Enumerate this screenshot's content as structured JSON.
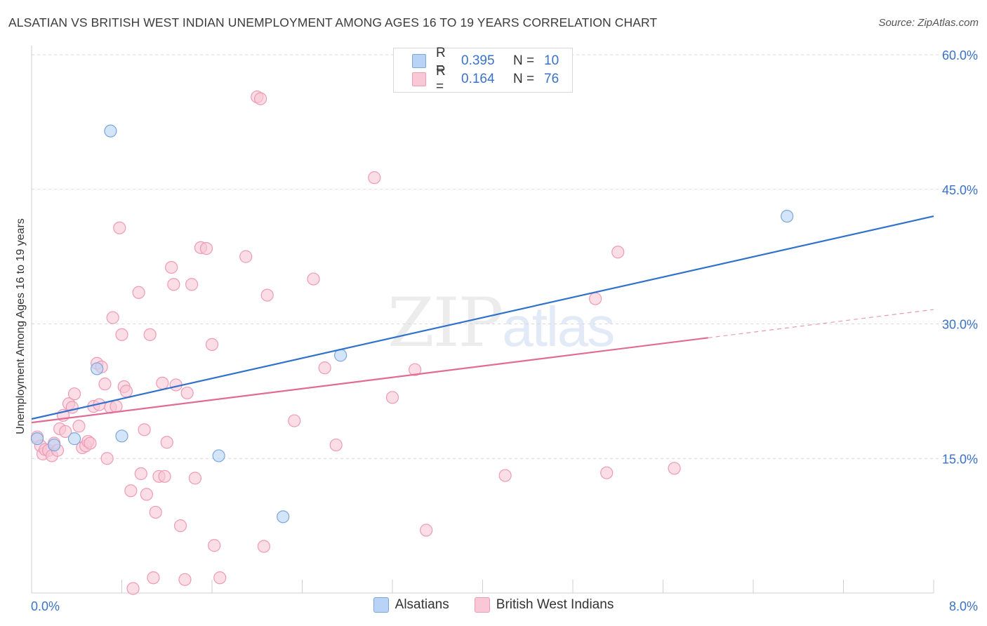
{
  "header": {
    "title": "ALSATIAN VS BRITISH WEST INDIAN UNEMPLOYMENT AMONG AGES 16 TO 19 YEARS CORRELATION CHART",
    "source": "Source: ZipAtlas.com"
  },
  "watermark": {
    "zip": "ZIP",
    "atlas": "atlas"
  },
  "legend": {
    "rows": [
      {
        "r_label": "R =",
        "r_value": "0.395",
        "n_label": "N =",
        "n_value": "10"
      },
      {
        "r_label": "R =",
        "r_value": "0.164",
        "n_label": "N =",
        "n_value": "76"
      }
    ]
  },
  "colors": {
    "alsatians_fill": "#b8d3f5",
    "alsatians_stroke": "#7aa6dc",
    "alsatians_line": "#2f72cc",
    "bwi_fill": "#f9c7d6",
    "bwi_stroke": "#ee9ab4",
    "bwi_line": "#e06c96",
    "axis_label": "#3a72c8",
    "grid": "#d9d9d9"
  },
  "chart_data": {
    "type": "scatter",
    "title": "ALSATIAN VS BRITISH WEST INDIAN UNEMPLOYMENT AMONG AGES 16 TO 19 YEARS CORRELATION CHART",
    "xlabel": "",
    "ylabel": "Unemployment Among Ages 16 to 19 years",
    "xlim": [
      0,
      8
    ],
    "ylim": [
      0,
      60
    ],
    "x_tick_labels": [
      "0.0%",
      "8.0%"
    ],
    "y_ticks": [
      15,
      30,
      45,
      60
    ],
    "y_tick_labels": [
      "15.0%",
      "30.0%",
      "45.0%",
      "60.0%"
    ],
    "grid": true,
    "series": [
      {
        "name": "Alsatians",
        "r": 0.395,
        "n": 10,
        "trend": {
          "x_start": 0.0,
          "y_start": 19.4,
          "x_end": 8.0,
          "y_end": 42.0,
          "dashed_from": null
        },
        "points": [
          [
            0.05,
            17.2
          ],
          [
            0.38,
            17.2
          ],
          [
            0.7,
            51.5
          ],
          [
            0.58,
            25.0
          ],
          [
            0.8,
            17.5
          ],
          [
            1.66,
            15.3
          ],
          [
            2.74,
            26.5
          ],
          [
            2.23,
            8.5
          ],
          [
            6.7,
            42.0
          ],
          [
            0.2,
            16.5
          ]
        ]
      },
      {
        "name": "British West Indians",
        "r": 0.164,
        "n": 76,
        "trend": {
          "x_start": 0.0,
          "y_start": 19.0,
          "x_end": 8.0,
          "y_end": 31.6,
          "dashed_from": 6.0
        },
        "points": [
          [
            0.05,
            17.4
          ],
          [
            0.08,
            16.4
          ],
          [
            0.1,
            15.5
          ],
          [
            0.12,
            16.0
          ],
          [
            0.15,
            15.9
          ],
          [
            0.18,
            15.3
          ],
          [
            0.2,
            16.7
          ],
          [
            0.23,
            15.9
          ],
          [
            0.25,
            18.3
          ],
          [
            0.28,
            19.8
          ],
          [
            0.3,
            18.0
          ],
          [
            0.33,
            21.1
          ],
          [
            0.36,
            20.7
          ],
          [
            0.38,
            22.2
          ],
          [
            0.42,
            18.6
          ],
          [
            0.45,
            16.2
          ],
          [
            0.48,
            16.4
          ],
          [
            0.5,
            16.9
          ],
          [
            0.52,
            16.7
          ],
          [
            0.55,
            20.8
          ],
          [
            0.58,
            25.6
          ],
          [
            0.6,
            21.0
          ],
          [
            0.62,
            25.2
          ],
          [
            0.65,
            23.3
          ],
          [
            0.67,
            15.0
          ],
          [
            0.7,
            20.7
          ],
          [
            0.72,
            30.7
          ],
          [
            0.75,
            20.8
          ],
          [
            0.78,
            40.7
          ],
          [
            0.8,
            28.8
          ],
          [
            0.82,
            23.0
          ],
          [
            0.84,
            22.5
          ],
          [
            0.88,
            11.4
          ],
          [
            0.9,
            0.5
          ],
          [
            0.95,
            33.5
          ],
          [
            0.97,
            13.3
          ],
          [
            1.0,
            18.2
          ],
          [
            1.02,
            11.0
          ],
          [
            1.05,
            28.8
          ],
          [
            1.08,
            1.7
          ],
          [
            1.1,
            9.0
          ],
          [
            1.13,
            13.0
          ],
          [
            1.16,
            23.4
          ],
          [
            1.18,
            13.0
          ],
          [
            1.2,
            16.8
          ],
          [
            1.24,
            36.3
          ],
          [
            1.26,
            34.4
          ],
          [
            1.28,
            23.2
          ],
          [
            1.32,
            7.5
          ],
          [
            1.36,
            1.5
          ],
          [
            1.38,
            22.3
          ],
          [
            1.42,
            34.4
          ],
          [
            1.45,
            12.8
          ],
          [
            1.5,
            38.5
          ],
          [
            1.55,
            38.4
          ],
          [
            1.6,
            27.7
          ],
          [
            1.62,
            5.3
          ],
          [
            1.67,
            1.7
          ],
          [
            1.9,
            37.5
          ],
          [
            2.0,
            55.3
          ],
          [
            2.03,
            55.1
          ],
          [
            2.06,
            5.2
          ],
          [
            2.09,
            33.2
          ],
          [
            2.33,
            19.2
          ],
          [
            2.5,
            35.0
          ],
          [
            2.6,
            25.1
          ],
          [
            2.7,
            16.5
          ],
          [
            3.04,
            46.3
          ],
          [
            3.2,
            21.8
          ],
          [
            3.4,
            24.9
          ],
          [
            3.5,
            7.0
          ],
          [
            4.2,
            13.1
          ],
          [
            5.0,
            32.8
          ],
          [
            5.2,
            38.0
          ],
          [
            5.1,
            13.4
          ],
          [
            5.7,
            13.9
          ]
        ]
      }
    ]
  },
  "bottom_legend": {
    "items": [
      {
        "label": "Alsatians"
      },
      {
        "label": "British West Indians"
      }
    ]
  }
}
